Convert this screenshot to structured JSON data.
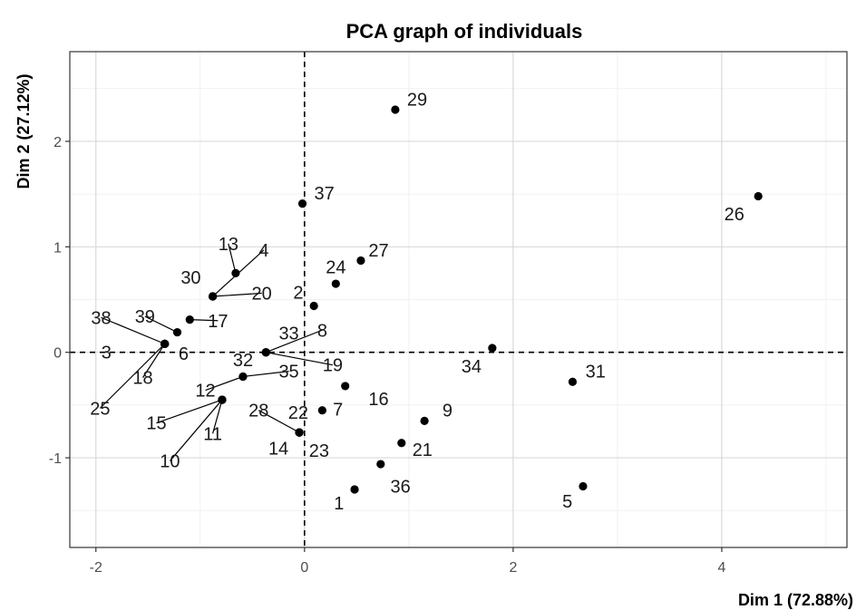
{
  "chart_data": {
    "type": "scatter",
    "title": "PCA graph of individuals",
    "xlabel": "Dim 1 (72.88%)",
    "ylabel": "Dim 2 (27.12%)",
    "xlim": [
      -2.25,
      5.2
    ],
    "ylim": [
      -1.85,
      2.85
    ],
    "x_ticks": [
      -2,
      0,
      2,
      4
    ],
    "y_ticks": [
      -1,
      0,
      1,
      2
    ],
    "grid": true,
    "reference_lines": {
      "x": 0,
      "y": 0,
      "style": "dashed"
    },
    "points": [
      {
        "label": "1",
        "x": 0.48,
        "y": -1.3,
        "lx": 0.33,
        "ly": -1.43
      },
      {
        "label": "2",
        "x": 0.09,
        "y": 0.44,
        "lx": -0.06,
        "ly": 0.57
      },
      {
        "label": "3",
        "x": -1.34,
        "y": 0.08,
        "lx": -1.9,
        "ly": 0.0
      },
      {
        "label": "4",
        "x": -0.88,
        "y": 0.53,
        "lx": -0.39,
        "ly": 0.97
      },
      {
        "label": "5",
        "x": 2.67,
        "y": -1.27,
        "lx": 2.52,
        "ly": -1.41
      },
      {
        "label": "6",
        "x": -1.34,
        "y": 0.08,
        "lx": -1.16,
        "ly": -0.01
      },
      {
        "label": "7",
        "x": 0.17,
        "y": -0.55,
        "lx": 0.32,
        "ly": -0.54
      },
      {
        "label": "8",
        "x": -0.37,
        "y": 0.0,
        "lx": 0.17,
        "ly": 0.21
      },
      {
        "label": "9",
        "x": 1.15,
        "y": -0.65,
        "lx": 1.37,
        "ly": -0.55
      },
      {
        "label": "10",
        "x": -0.79,
        "y": -0.45,
        "lx": -1.29,
        "ly": -1.03
      },
      {
        "label": "11",
        "x": -0.79,
        "y": -0.45,
        "lx": -0.88,
        "ly": -0.77
      },
      {
        "label": "12",
        "x": -0.59,
        "y": -0.23,
        "lx": -0.95,
        "ly": -0.36
      },
      {
        "label": "13",
        "x": -0.66,
        "y": 0.75,
        "lx": -0.73,
        "ly": 1.03
      },
      {
        "label": "14",
        "x": -0.05,
        "y": -0.76,
        "lx": -0.25,
        "ly": -0.91
      },
      {
        "label": "15",
        "x": -0.79,
        "y": -0.45,
        "lx": -1.42,
        "ly": -0.67
      },
      {
        "label": "16",
        "x": 0.39,
        "y": -0.32,
        "lx": 0.71,
        "ly": -0.44
      },
      {
        "label": "17",
        "x": -1.1,
        "y": 0.31,
        "lx": -0.83,
        "ly": 0.3
      },
      {
        "label": "18",
        "x": -1.34,
        "y": 0.08,
        "lx": -1.55,
        "ly": -0.24
      },
      {
        "label": "19",
        "x": -0.37,
        "y": 0.0,
        "lx": 0.27,
        "ly": -0.12
      },
      {
        "label": "20",
        "x": -0.88,
        "y": 0.53,
        "lx": -0.41,
        "ly": 0.56
      },
      {
        "label": "21",
        "x": 0.93,
        "y": -0.86,
        "lx": 1.13,
        "ly": -0.92
      },
      {
        "label": "22",
        "x": -0.05,
        "y": -0.76,
        "lx": -0.06,
        "ly": -0.57
      },
      {
        "label": "23",
        "x": -0.05,
        "y": -0.76,
        "lx": 0.14,
        "ly": -0.93
      },
      {
        "label": "24",
        "x": 0.3,
        "y": 0.65,
        "lx": 0.3,
        "ly": 0.81
      },
      {
        "label": "25",
        "x": -1.34,
        "y": 0.08,
        "lx": -1.96,
        "ly": -0.53
      },
      {
        "label": "26",
        "x": 4.35,
        "y": 1.48,
        "lx": 4.12,
        "ly": 1.31
      },
      {
        "label": "27",
        "x": 0.54,
        "y": 0.87,
        "lx": 0.71,
        "ly": 0.97
      },
      {
        "label": "28",
        "x": -0.05,
        "y": -0.76,
        "lx": -0.44,
        "ly": -0.55
      },
      {
        "label": "29",
        "x": 0.87,
        "y": 2.3,
        "lx": 1.08,
        "ly": 2.4
      },
      {
        "label": "30",
        "x": -0.88,
        "y": 0.53,
        "lx": -1.09,
        "ly": 0.71
      },
      {
        "label": "31",
        "x": 2.57,
        "y": -0.28,
        "lx": 2.79,
        "ly": -0.18
      },
      {
        "label": "32",
        "x": -0.37,
        "y": 0.0,
        "lx": -0.59,
        "ly": -0.07
      },
      {
        "label": "33",
        "x": -0.37,
        "y": 0.0,
        "lx": -0.15,
        "ly": 0.18
      },
      {
        "label": "34",
        "x": 1.8,
        "y": 0.04,
        "lx": 1.6,
        "ly": -0.13
      },
      {
        "label": "35",
        "x": -0.59,
        "y": -0.23,
        "lx": -0.15,
        "ly": -0.18
      },
      {
        "label": "36",
        "x": 0.73,
        "y": -1.06,
        "lx": 0.92,
        "ly": -1.27
      },
      {
        "label": "37",
        "x": -0.02,
        "y": 1.41,
        "lx": 0.19,
        "ly": 1.51
      },
      {
        "label": "38",
        "x": -1.34,
        "y": 0.08,
        "lx": -1.95,
        "ly": 0.33
      },
      {
        "label": "39",
        "x": -1.22,
        "y": 0.19,
        "lx": -1.53,
        "ly": 0.34
      }
    ],
    "leader_lines": [
      "4",
      "10",
      "11",
      "12",
      "13",
      "15",
      "17",
      "18",
      "19",
      "20",
      "25",
      "28",
      "35",
      "38",
      "39",
      "8"
    ],
    "colors": {
      "points": "#000000",
      "grid": "#d9d9d9",
      "panel": "#ffffff"
    }
  }
}
